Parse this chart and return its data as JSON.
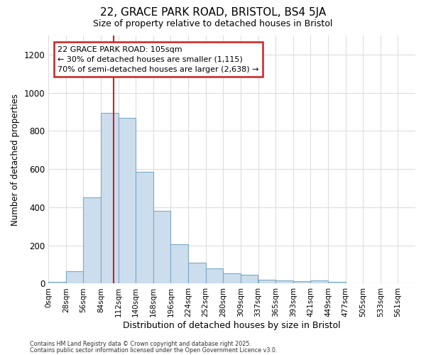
{
  "title1": "22, GRACE PARK ROAD, BRISTOL, BS4 5JA",
  "title2": "Size of property relative to detached houses in Bristol",
  "xlabel": "Distribution of detached houses by size in Bristol",
  "ylabel": "Number of detached properties",
  "bar_labels": [
    "0sqm",
    "28sqm",
    "56sqm",
    "84sqm",
    "112sqm",
    "140sqm",
    "168sqm",
    "196sqm",
    "224sqm",
    "252sqm",
    "280sqm",
    "309sqm",
    "337sqm",
    "365sqm",
    "393sqm",
    "421sqm",
    "449sqm",
    "477sqm",
    "505sqm",
    "533sqm",
    "561sqm"
  ],
  "bar_heights": [
    10,
    65,
    450,
    893,
    870,
    585,
    383,
    205,
    110,
    80,
    55,
    48,
    20,
    15,
    12,
    15,
    10,
    3,
    2,
    2,
    2
  ],
  "bar_color": "#ccdded",
  "bar_edge_color": "#7aaac8",
  "vline_x_bin": 3.75,
  "vline_color": "#cc2222",
  "annotation_text": "22 GRACE PARK ROAD: 105sqm\n← 30% of detached houses are smaller (1,115)\n70% of semi-detached houses are larger (2,638) →",
  "annotation_box_color": "#ffffff",
  "annotation_box_edge": "#cc2222",
  "ylim": [
    0,
    1300
  ],
  "yticks": [
    0,
    200,
    400,
    600,
    800,
    1000,
    1200
  ],
  "background_color": "#ffffff",
  "grid_color": "#dddddd",
  "footer1": "Contains HM Land Registry data © Crown copyright and database right 2025.",
  "footer2": "Contains public sector information licensed under the Open Government Licence v3.0.",
  "bin_width": 28
}
